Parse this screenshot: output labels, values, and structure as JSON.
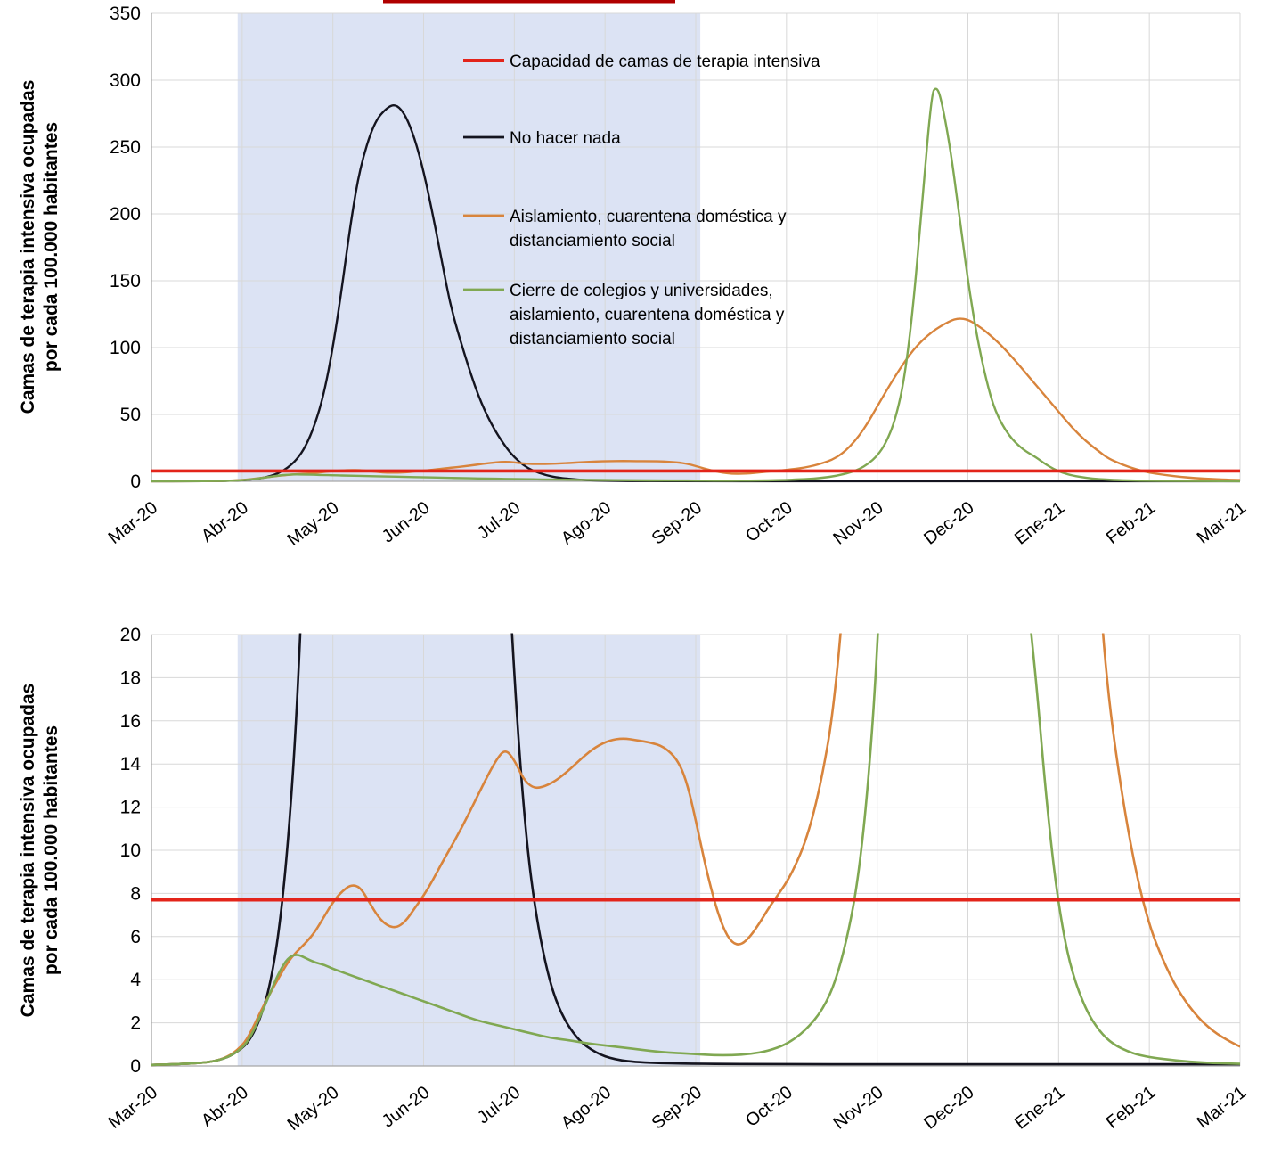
{
  "figure": {
    "background": "#ffffff",
    "grid_color": "#d8d8d8",
    "axis_color": "#a6a6a6",
    "top_edge_artifact_color": "#b00000"
  },
  "chart_data": {
    "type": "line",
    "title": "",
    "x_axis": {
      "unit": "month",
      "range_months": [
        0,
        12
      ],
      "tick_labels": [
        "Mar-20",
        "Abr-20",
        "May-20",
        "Jun-20",
        "Jul-20",
        "Ago-20",
        "Sep-20",
        "Oct-20",
        "Nov-20",
        "Dec-20",
        "Ene-21",
        "Feb-21",
        "Mar-21"
      ]
    },
    "shaded_region": {
      "x0_month": 0.95,
      "x1_month": 6.05,
      "color": "#dce3f4"
    },
    "capacity_line": {
      "label": "Capacidad de camas de terapia intensiva",
      "value": 7.7,
      "color": "#e3241a"
    },
    "series": [
      {
        "name": "No hacer nada",
        "color": "#14141f",
        "points": [
          [
            0,
            0.05
          ],
          [
            0.5,
            0.1
          ],
          [
            0.8,
            0.3
          ],
          [
            1,
            0.8
          ],
          [
            1.1,
            1.3
          ],
          [
            1.2,
            2.2
          ],
          [
            1.3,
            3.6
          ],
          [
            1.4,
            6
          ],
          [
            1.5,
            10
          ],
          [
            1.6,
            16
          ],
          [
            1.7,
            26
          ],
          [
            1.8,
            42
          ],
          [
            1.9,
            65
          ],
          [
            2,
            100
          ],
          [
            2.1,
            145
          ],
          [
            2.2,
            195
          ],
          [
            2.3,
            235
          ],
          [
            2.45,
            268
          ],
          [
            2.6,
            280
          ],
          [
            2.7,
            282
          ],
          [
            2.8,
            274
          ],
          [
            2.9,
            257
          ],
          [
            3,
            232
          ],
          [
            3.1,
            200
          ],
          [
            3.2,
            165
          ],
          [
            3.3,
            130
          ],
          [
            3.45,
            95
          ],
          [
            3.6,
            64
          ],
          [
            3.75,
            42
          ],
          [
            3.9,
            26
          ],
          [
            4,
            18
          ],
          [
            4.1,
            12
          ],
          [
            4.2,
            8
          ],
          [
            4.35,
            4.5
          ],
          [
            4.5,
            2.5
          ],
          [
            4.7,
            1.2
          ],
          [
            4.9,
            0.6
          ],
          [
            5.1,
            0.3
          ],
          [
            5.4,
            0.15
          ],
          [
            6,
            0.1
          ],
          [
            7,
            0.08
          ],
          [
            8,
            0.08
          ],
          [
            9,
            0.08
          ],
          [
            10,
            0.08
          ],
          [
            11,
            0.08
          ],
          [
            12,
            0.08
          ]
        ]
      },
      {
        "name": "Aislamiento, cuarentena doméstica y distanciamiento social",
        "color": "#d8843c",
        "points": [
          [
            0,
            0.05
          ],
          [
            0.5,
            0.1
          ],
          [
            0.8,
            0.3
          ],
          [
            1,
            0.9
          ],
          [
            1.1,
            1.6
          ],
          [
            1.2,
            2.5
          ],
          [
            1.35,
            3.7
          ],
          [
            1.5,
            4.8
          ],
          [
            1.6,
            5.3
          ],
          [
            1.7,
            5.7
          ],
          [
            1.8,
            6.2
          ],
          [
            1.9,
            6.9
          ],
          [
            2,
            7.6
          ],
          [
            2.1,
            8.1
          ],
          [
            2.2,
            8.4
          ],
          [
            2.3,
            8.3
          ],
          [
            2.4,
            7.6
          ],
          [
            2.5,
            6.9
          ],
          [
            2.6,
            6.5
          ],
          [
            2.7,
            6.4
          ],
          [
            2.8,
            6.7
          ],
          [
            2.9,
            7.3
          ],
          [
            3,
            7.9
          ],
          [
            3.1,
            8.6
          ],
          [
            3.2,
            9.4
          ],
          [
            3.35,
            10.5
          ],
          [
            3.5,
            11.7
          ],
          [
            3.65,
            13
          ],
          [
            3.8,
            14.2
          ],
          [
            3.9,
            14.7
          ],
          [
            4,
            14.2
          ],
          [
            4.1,
            13.3
          ],
          [
            4.2,
            12.9
          ],
          [
            4.3,
            12.9
          ],
          [
            4.45,
            13.2
          ],
          [
            4.6,
            13.7
          ],
          [
            4.75,
            14.3
          ],
          [
            4.9,
            14.8
          ],
          [
            5.05,
            15.1
          ],
          [
            5.2,
            15.2
          ],
          [
            5.35,
            15.1
          ],
          [
            5.5,
            15
          ],
          [
            5.65,
            14.8
          ],
          [
            5.8,
            14.2
          ],
          [
            5.9,
            13.2
          ],
          [
            6,
            11.4
          ],
          [
            6.1,
            9.4
          ],
          [
            6.2,
            7.7
          ],
          [
            6.3,
            6.4
          ],
          [
            6.4,
            5.7
          ],
          [
            6.5,
            5.6
          ],
          [
            6.6,
            6
          ],
          [
            6.7,
            6.6
          ],
          [
            6.8,
            7.3
          ],
          [
            6.9,
            7.9
          ],
          [
            7,
            8.5
          ],
          [
            7.1,
            9.3
          ],
          [
            7.2,
            10.3
          ],
          [
            7.3,
            11.7
          ],
          [
            7.4,
            13.6
          ],
          [
            7.5,
            16
          ],
          [
            7.6,
            20
          ],
          [
            7.7,
            26
          ],
          [
            7.8,
            34
          ],
          [
            7.9,
            44
          ],
          [
            8,
            56
          ],
          [
            8.2,
            79
          ],
          [
            8.4,
            99
          ],
          [
            8.6,
            112
          ],
          [
            8.8,
            120
          ],
          [
            8.9,
            122
          ],
          [
            9,
            121
          ],
          [
            9.1,
            117
          ],
          [
            9.2,
            112
          ],
          [
            9.35,
            103
          ],
          [
            9.5,
            92
          ],
          [
            9.65,
            80
          ],
          [
            9.8,
            68
          ],
          [
            10,
            52
          ],
          [
            10.15,
            40
          ],
          [
            10.3,
            30
          ],
          [
            10.45,
            22
          ],
          [
            10.55,
            17
          ],
          [
            10.7,
            12.5
          ],
          [
            10.85,
            9
          ],
          [
            11,
            6.5
          ],
          [
            11.15,
            4.9
          ],
          [
            11.3,
            3.6
          ],
          [
            11.5,
            2.4
          ],
          [
            11.7,
            1.6
          ],
          [
            11.9,
            1.1
          ],
          [
            12,
            0.9
          ]
        ]
      },
      {
        "name": "Cierre de colegios y universidades, aislamiento, cuarentena doméstica y distanciamiento social",
        "color": "#80a852",
        "points": [
          [
            0,
            0.05
          ],
          [
            0.5,
            0.1
          ],
          [
            0.8,
            0.3
          ],
          [
            1,
            0.8
          ],
          [
            1.1,
            1.4
          ],
          [
            1.2,
            2.3
          ],
          [
            1.3,
            3.3
          ],
          [
            1.4,
            4.3
          ],
          [
            1.5,
            5
          ],
          [
            1.6,
            5.2
          ],
          [
            1.7,
            5
          ],
          [
            1.8,
            4.8
          ],
          [
            1.9,
            4.7
          ],
          [
            2,
            4.5
          ],
          [
            2.2,
            4.2
          ],
          [
            2.4,
            3.9
          ],
          [
            2.6,
            3.6
          ],
          [
            2.8,
            3.3
          ],
          [
            3,
            3
          ],
          [
            3.2,
            2.7
          ],
          [
            3.4,
            2.4
          ],
          [
            3.6,
            2.1
          ],
          [
            3.8,
            1.9
          ],
          [
            4,
            1.7
          ],
          [
            4.2,
            1.5
          ],
          [
            4.4,
            1.3
          ],
          [
            4.6,
            1.2
          ],
          [
            4.8,
            1.05
          ],
          [
            5,
            0.95
          ],
          [
            5.2,
            0.85
          ],
          [
            5.4,
            0.75
          ],
          [
            5.6,
            0.65
          ],
          [
            5.8,
            0.6
          ],
          [
            6,
            0.55
          ],
          [
            6.2,
            0.5
          ],
          [
            6.4,
            0.5
          ],
          [
            6.6,
            0.55
          ],
          [
            6.8,
            0.7
          ],
          [
            7,
            1
          ],
          [
            7.2,
            1.6
          ],
          [
            7.4,
            2.6
          ],
          [
            7.55,
            4
          ],
          [
            7.7,
            6.5
          ],
          [
            7.8,
            9
          ],
          [
            7.9,
            13
          ],
          [
            8,
            19
          ],
          [
            8.1,
            29
          ],
          [
            8.2,
            46
          ],
          [
            8.3,
            76
          ],
          [
            8.4,
            132
          ],
          [
            8.5,
            212
          ],
          [
            8.6,
            290
          ],
          [
            8.65,
            295
          ],
          [
            8.7,
            288
          ],
          [
            8.8,
            252
          ],
          [
            8.9,
            202
          ],
          [
            9,
            150
          ],
          [
            9.1,
            108
          ],
          [
            9.2,
            76
          ],
          [
            9.3,
            52
          ],
          [
            9.45,
            34
          ],
          [
            9.6,
            24
          ],
          [
            9.75,
            18
          ],
          [
            9.85,
            13
          ],
          [
            9.95,
            9
          ],
          [
            10.05,
            6.2
          ],
          [
            10.15,
            4.3
          ],
          [
            10.3,
            2.6
          ],
          [
            10.45,
            1.6
          ],
          [
            10.6,
            1
          ],
          [
            10.8,
            0.6
          ],
          [
            11,
            0.4
          ],
          [
            11.3,
            0.25
          ],
          [
            11.6,
            0.15
          ],
          [
            12,
            0.1
          ]
        ]
      }
    ],
    "panels": [
      {
        "id": "top",
        "ylim": [
          0,
          350
        ],
        "ytick_step": 50,
        "grid": true,
        "ylabel_lines": [
          "Camas de terapia intensiva ocupadas",
          "por cada 100.000 habitantes"
        ]
      },
      {
        "id": "bottom",
        "ylim": [
          0,
          20
        ],
        "ytick_step": 2,
        "grid": true,
        "ylabel_lines": [
          "Camas de terapia intensiva ocupadas",
          "por cada 100.000 habitantes"
        ]
      }
    ],
    "legend": {
      "position": "inside-top-center",
      "items": [
        {
          "color": "#e3241a",
          "lines": [
            "Capacidad de camas de terapia intensiva"
          ]
        },
        {
          "color": "#14141f",
          "lines": [
            "No hacer nada"
          ]
        },
        {
          "color": "#d8843c",
          "lines": [
            "Aislamiento, cuarentena  doméstica y",
            "distanciamiento social"
          ]
        },
        {
          "color": "#80a852",
          "lines": [
            "Cierre de colegios y universidades,",
            "aislamiento, cuarentena doméstica y",
            "distanciamiento social"
          ]
        }
      ]
    }
  }
}
